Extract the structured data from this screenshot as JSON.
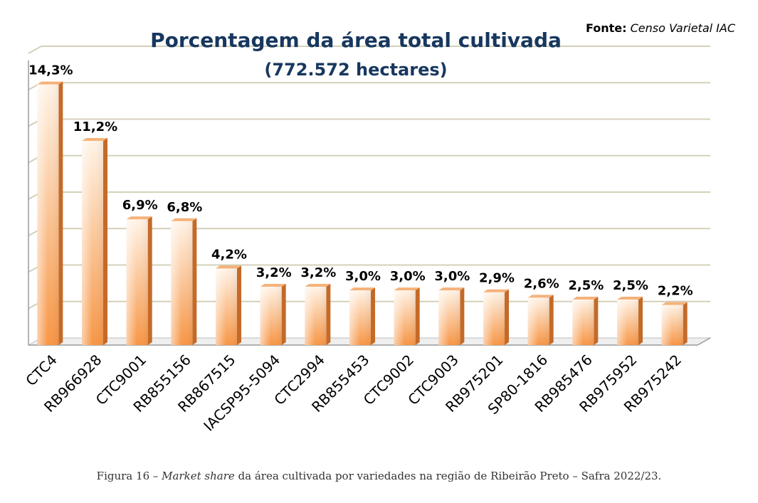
{
  "source": {
    "label": "Fonte:",
    "value": "Censo Varietal  IAC"
  },
  "caption": {
    "prefix": "Figura 16 – ",
    "emphasis": "Market share",
    "suffix": " da área cultivada por variedades na região de Ribeirão Preto – Safra 2022/23."
  },
  "chart_data": {
    "type": "bar",
    "title": "Porcentagem da área total cultivada",
    "subtitle": "(772.572 hectares)",
    "categories": [
      "CTC4",
      "RB966928",
      "CTC9001",
      "RB855156",
      "RB867515",
      "IACSP95-5094",
      "CTC2994",
      "RB855453",
      "CTC9002",
      "CTC9003",
      "RB975201",
      "SP80-1816",
      "RB985476",
      "RB975952",
      "RB975242"
    ],
    "values": [
      14.3,
      11.2,
      6.9,
      6.8,
      4.2,
      3.2,
      3.2,
      3.0,
      3.0,
      3.0,
      2.9,
      2.6,
      2.5,
      2.5,
      2.2
    ],
    "value_labels": [
      "14,3%",
      "11,2%",
      "6,9%",
      "6,8%",
      "4,2%",
      "3,2%",
      "3,2%",
      "3,0%",
      "3,0%",
      "3,0%",
      "2,9%",
      "2,6%",
      "2,5%",
      "2,5%",
      "2,2%"
    ],
    "ylim": [
      0,
      16
    ],
    "grid": true,
    "xlabel": "",
    "ylabel": "",
    "colors": {
      "bar_light": "#fff3e6",
      "bar_dark": "#f79646",
      "bar_side": "#c46a28",
      "bar_top": "#f4b27a",
      "grid": "#d4d0b8"
    }
  }
}
